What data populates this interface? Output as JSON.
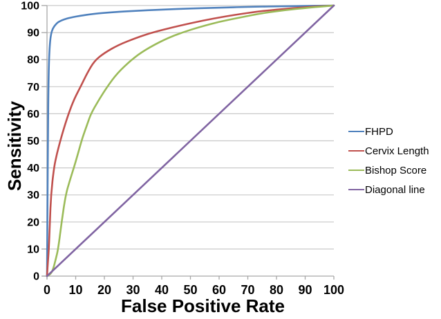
{
  "chart_data": {
    "type": "line",
    "title": "",
    "xlabel": "False Positive Rate",
    "ylabel": "Sensitivity",
    "xlim": [
      0,
      100
    ],
    "ylim": [
      0,
      100
    ],
    "x_ticks": [
      "0",
      "10",
      "20",
      "30",
      "40",
      "50",
      "60",
      "70",
      "80",
      "90",
      "100"
    ],
    "y_ticks": [
      "0",
      "10",
      "20",
      "30",
      "40",
      "50",
      "60",
      "70",
      "80",
      "90",
      "100"
    ],
    "grid": "horizontal-only",
    "legend_position": "right",
    "colors": {
      "gridline": "#C9C9C9",
      "axis": "#A6A6A6",
      "text": "#000000",
      "background": "#FFFFFF"
    },
    "series": [
      {
        "name": "FHPD",
        "color": "#4F81BD",
        "points": [
          [
            0,
            0
          ],
          [
            0.2,
            30
          ],
          [
            0.35,
            55
          ],
          [
            0.5,
            70
          ],
          [
            0.7,
            80
          ],
          [
            1,
            86
          ],
          [
            1.4,
            89.5
          ],
          [
            2,
            91.5
          ],
          [
            3,
            93
          ],
          [
            4,
            94
          ],
          [
            6,
            94.9
          ],
          [
            8,
            95.5
          ],
          [
            12,
            96.3
          ],
          [
            16,
            96.9
          ],
          [
            20,
            97.3
          ],
          [
            25,
            97.7
          ],
          [
            30,
            98
          ],
          [
            40,
            98.5
          ],
          [
            50,
            98.9
          ],
          [
            60,
            99.2
          ],
          [
            70,
            99.5
          ],
          [
            85,
            99.8
          ],
          [
            100,
            100
          ]
        ]
      },
      {
        "name": "Cervix Length",
        "color": "#C0504D",
        "points": [
          [
            0,
            0
          ],
          [
            0.3,
            5
          ],
          [
            0.65,
            10
          ],
          [
            1,
            20
          ],
          [
            1.4,
            30
          ],
          [
            2.4,
            40
          ],
          [
            3.5,
            45.5
          ],
          [
            4.9,
            51
          ],
          [
            6,
            55
          ],
          [
            7.5,
            60
          ],
          [
            9.5,
            65.5
          ],
          [
            11.7,
            70
          ],
          [
            14,
            75
          ],
          [
            16.5,
            79.5
          ],
          [
            20,
            82.5
          ],
          [
            25,
            85.5
          ],
          [
            31,
            88
          ],
          [
            36,
            89.8
          ],
          [
            41,
            91.2
          ],
          [
            48,
            93
          ],
          [
            56,
            94.8
          ],
          [
            65,
            96.5
          ],
          [
            75,
            98
          ],
          [
            85,
            99
          ],
          [
            93,
            99.6
          ],
          [
            100,
            100
          ]
        ]
      },
      {
        "name": "Bishop Score",
        "color": "#9BBB59",
        "points": [
          [
            0,
            0
          ],
          [
            1,
            0.5
          ],
          [
            2,
            2
          ],
          [
            3,
            6
          ],
          [
            3.9,
            10
          ],
          [
            5.1,
            20
          ],
          [
            6.5,
            30
          ],
          [
            8,
            35.5
          ],
          [
            9.5,
            40.5
          ],
          [
            11,
            46
          ],
          [
            12.3,
            51
          ],
          [
            14,
            56
          ],
          [
            15.3,
            60
          ],
          [
            18,
            65
          ],
          [
            21,
            70
          ],
          [
            24.5,
            75
          ],
          [
            29.5,
            80
          ],
          [
            34,
            83.5
          ],
          [
            41,
            87.5
          ],
          [
            47,
            90
          ],
          [
            53,
            92
          ],
          [
            60,
            94
          ],
          [
            67,
            95.5
          ],
          [
            75,
            97.2
          ],
          [
            83,
            98.3
          ],
          [
            91,
            99.2
          ],
          [
            100,
            100
          ]
        ]
      },
      {
        "name": "Diagonal line",
        "color": "#8064A2",
        "points": [
          [
            0,
            0
          ],
          [
            100,
            100
          ]
        ]
      }
    ]
  }
}
